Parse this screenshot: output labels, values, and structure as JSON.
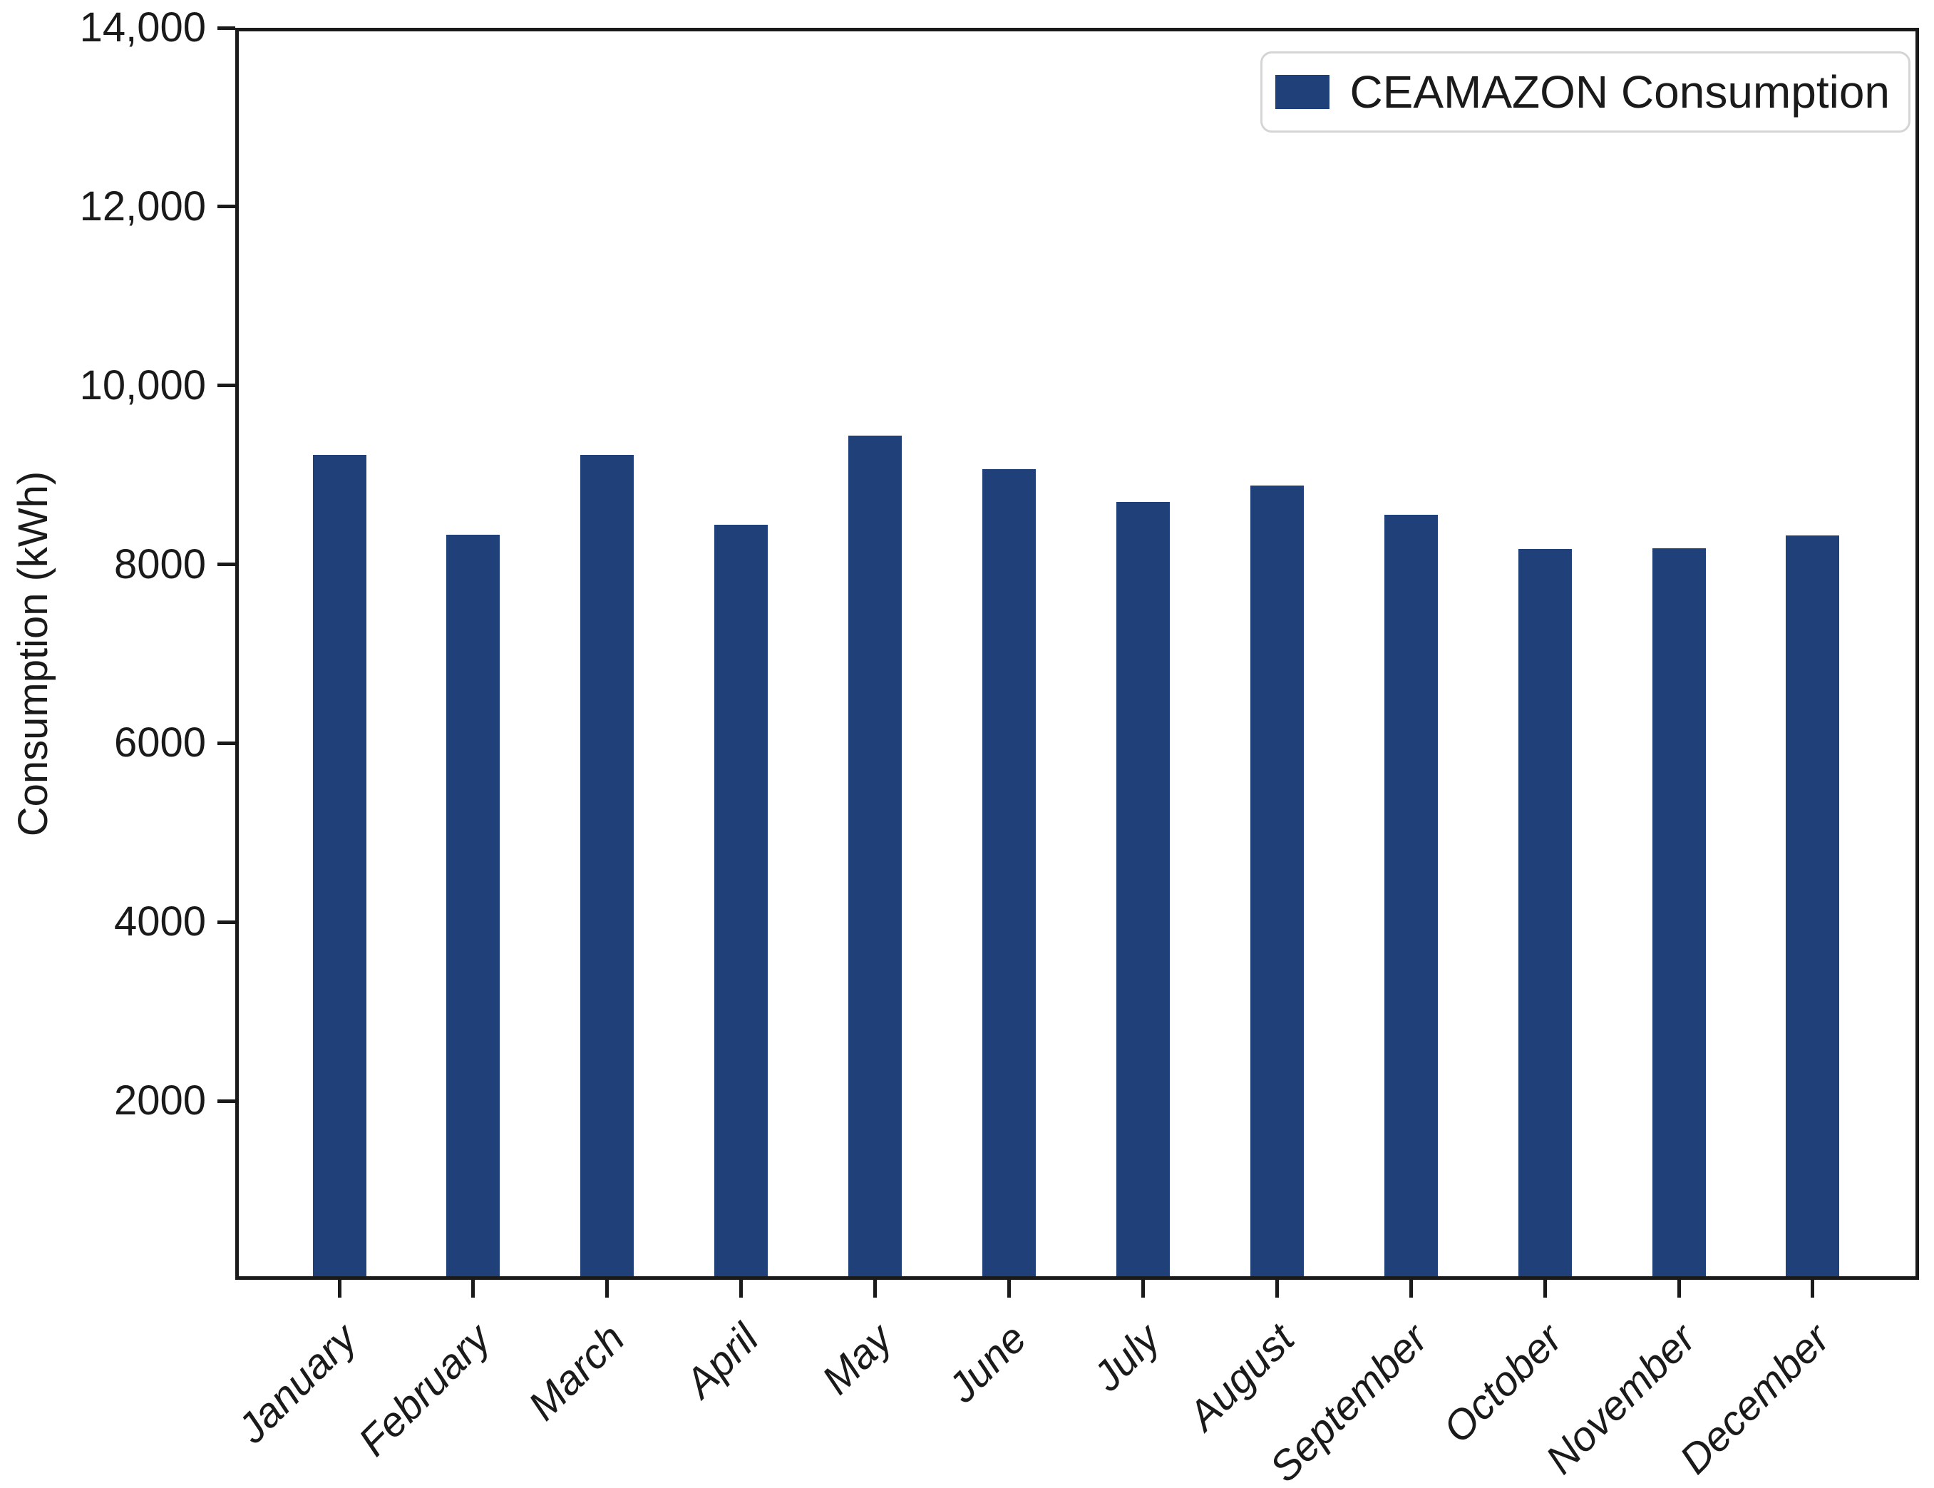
{
  "figure": {
    "background": "#ffffff"
  },
  "axes": {
    "ylabel": "Consumption (kWh)",
    "ylim": [
      0,
      14000
    ],
    "y_ticks": [
      {
        "value": 2000,
        "label": "2000"
      },
      {
        "value": 4000,
        "label": "4000"
      },
      {
        "value": 6000,
        "label": "6000"
      },
      {
        "value": 8000,
        "label": "8000"
      },
      {
        "value": 10000,
        "label": "10,000"
      },
      {
        "value": 12000,
        "label": "12,000"
      },
      {
        "value": 14000,
        "label": "14,000"
      }
    ]
  },
  "legend": {
    "label": "CEAMAZON Consumption",
    "position": "upper right"
  },
  "colors": {
    "bar": "#20407a",
    "axis": "#1a1a1a",
    "text": "#1a1a1a",
    "legend_border": "#d5d5d5"
  },
  "chart_data": {
    "type": "bar",
    "categories": [
      "January",
      "February",
      "March",
      "April",
      "May",
      "June",
      "July",
      "August",
      "September",
      "October",
      "November",
      "December"
    ],
    "values": [
      9240,
      8340,
      9240,
      8450,
      9450,
      9080,
      8710,
      8890,
      8560,
      8180,
      8190,
      8330
    ],
    "title": "",
    "xlabel": "",
    "ylabel": "Consumption (kWh)",
    "ylim": [
      0,
      14000
    ],
    "grid": false,
    "legend_entries": [
      "CEAMAZON Consumption"
    ],
    "legend_position": "upper right",
    "x_tick_rotation_deg": 45,
    "x_tick_style": "italic"
  }
}
